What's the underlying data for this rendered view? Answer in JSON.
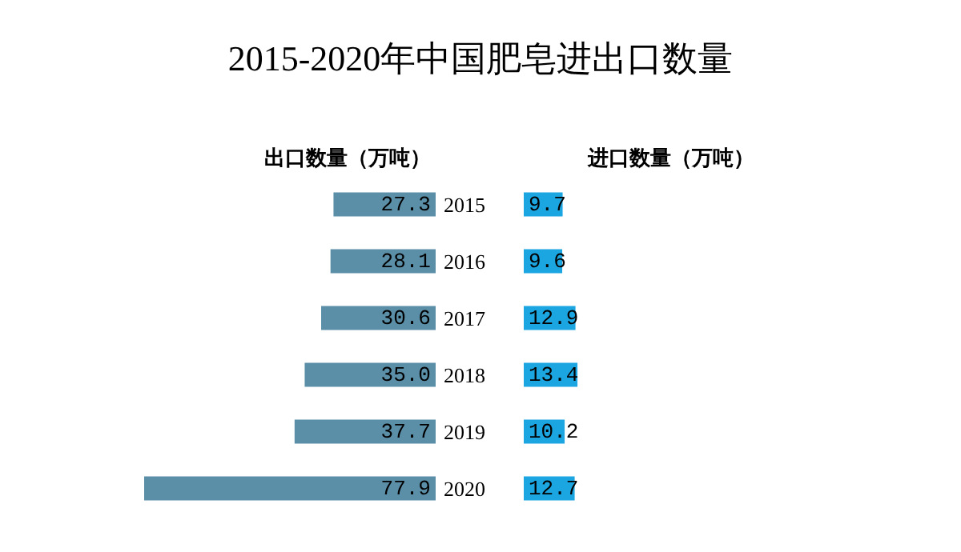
{
  "chart_data": [
    {
      "type": "bar",
      "orientation": "horizontal",
      "title": "2015-2020年中国肥皂进出口数量",
      "categories": [
        "2015",
        "2016",
        "2017",
        "2018",
        "2019",
        "2020"
      ],
      "series": [
        {
          "name": "出口数量（万吨）",
          "color": "#5b8fa8",
          "values": [
            27.3,
            28.1,
            30.6,
            35.0,
            37.7,
            77.9
          ],
          "value_labels": [
            "27.3",
            "28.1",
            "30.6",
            "35.0",
            "37.7",
            "77.9"
          ]
        }
      ]
    },
    {
      "type": "bar",
      "orientation": "horizontal",
      "categories": [
        null,
        null,
        null,
        null,
        null,
        null
      ],
      "series": [
        {
          "name": "进口数量（万吨）",
          "color": "#1ba6e2",
          "values": [
            9.7,
            9.6,
            12.9,
            13.4,
            10.2,
            12.7
          ],
          "value_labels": [
            "9.7",
            "9.6",
            "12.9",
            "13.4",
            "10.2",
            "12.7"
          ]
        }
      ]
    }
  ]
}
